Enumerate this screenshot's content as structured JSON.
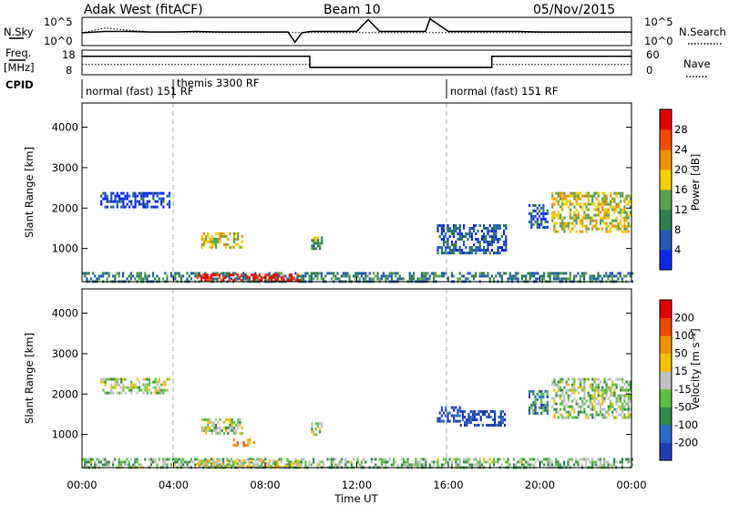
{
  "header": {
    "station": "Adak West (fitACF)",
    "beam": "Beam 10",
    "date": "05/Nov/2015"
  },
  "side_labels": {
    "nsky": "N.Sky",
    "nsearch": "N.Search",
    "freq_line1": "Freq.",
    "freq_line2": "[MHz]",
    "nave": "Nave",
    "cpid": "CPID"
  },
  "cpid_labels": [
    "normal (fast) 151 RF",
    "themis 3300 RF",
    "normal (fast) 151 RF"
  ],
  "chart_data": [
    {
      "type": "line",
      "name": "noise",
      "y_ticks_left": [
        "10^5",
        "10^0"
      ],
      "y_ticks_right": [
        "10^5",
        "10^0"
      ],
      "series": [
        {
          "name": "N.Sky",
          "style": "solid",
          "x": [
            0,
            1,
            2,
            3,
            4,
            5,
            6,
            7,
            8,
            9,
            9.3,
            9.6,
            10,
            11,
            12,
            12.5,
            13,
            14,
            15,
            15.2,
            16,
            17,
            18,
            19,
            20,
            21,
            22,
            23,
            24
          ],
          "y": [
            0.45,
            0.5,
            0.5,
            0.48,
            0.48,
            0.5,
            0.48,
            0.48,
            0.48,
            0.48,
            0.12,
            0.45,
            0.5,
            0.5,
            0.5,
            0.92,
            0.5,
            0.5,
            0.5,
            0.95,
            0.5,
            0.5,
            0.5,
            0.5,
            0.48,
            0.48,
            0.48,
            0.48,
            0.48
          ]
        },
        {
          "name": "N.Search",
          "style": "dotted",
          "x": [
            0,
            1,
            2,
            3,
            4,
            6,
            8,
            10,
            12,
            14,
            16,
            18,
            20,
            22,
            24
          ],
          "y": [
            0.45,
            0.62,
            0.55,
            0.48,
            0.48,
            0.46,
            0.46,
            0.46,
            0.46,
            0.46,
            0.46,
            0.46,
            0.46,
            0.46,
            0.46
          ]
        }
      ]
    },
    {
      "type": "line",
      "name": "frequency",
      "y_ticks_left": [
        "18",
        "8"
      ],
      "y_ticks_right": [
        "60",
        "0"
      ],
      "series": [
        {
          "name": "Freq.",
          "style": "solid",
          "x": [
            0,
            9.95,
            9.95,
            17.9,
            17.9,
            24
          ],
          "y": [
            0.75,
            0.75,
            0.3,
            0.3,
            0.75,
            0.75
          ]
        },
        {
          "name": "Nave",
          "style": "dotted",
          "x": [
            0,
            9.95,
            9.95,
            17.9,
            17.9,
            24
          ],
          "y": [
            0.42,
            0.42,
            0.28,
            0.28,
            0.42,
            0.42
          ]
        }
      ]
    },
    {
      "type": "heatmap",
      "name": "power",
      "xlabel": "",
      "ylabel": "Slant Range [km]",
      "ylim": [
        180,
        4600
      ],
      "xlim": [
        0,
        24
      ],
      "x_ticks": [],
      "y_ticks": [
        "1000",
        "2000",
        "3000",
        "4000"
      ],
      "colorbar_label": "Power [dB]",
      "colorbar_ticks": [
        "4",
        "8",
        "12",
        "16",
        "20",
        "24",
        "28"
      ],
      "colorbar_colors": [
        "#0a28e6",
        "#1f5ab4",
        "#2e7d4f",
        "#5aa050",
        "#f2d000",
        "#f29000",
        "#f24a00",
        "#e00000"
      ],
      "echo_regions": [
        {
          "t": [
            0.0,
            24.0
          ],
          "r": [
            200,
            420
          ],
          "level": 0.3
        },
        {
          "t": [
            5.0,
            9.5
          ],
          "r": [
            220,
            380
          ],
          "level": 0.95
        },
        {
          "t": [
            0.8,
            3.8
          ],
          "r": [
            2000,
            2400
          ],
          "level": 0.1
        },
        {
          "t": [
            5.2,
            7.0
          ],
          "r": [
            1000,
            1400
          ],
          "level": 0.55
        },
        {
          "t": [
            10.0,
            10.5
          ],
          "r": [
            1000,
            1300
          ],
          "level": 0.4
        },
        {
          "t": [
            15.5,
            18.5
          ],
          "r": [
            900,
            1600
          ],
          "level": 0.2
        },
        {
          "t": [
            19.5,
            20.3
          ],
          "r": [
            1500,
            2100
          ],
          "level": 0.15
        },
        {
          "t": [
            20.5,
            24.0
          ],
          "r": [
            1400,
            2400
          ],
          "level": 0.55
        }
      ]
    },
    {
      "type": "heatmap",
      "name": "velocity",
      "xlabel": "Time UT",
      "ylabel": "Slant Range [km]",
      "ylim": [
        180,
        4600
      ],
      "xlim": [
        0,
        24
      ],
      "x_ticks": [
        "00:00",
        "04:00",
        "08:00",
        "12:00",
        "16:00",
        "20:00",
        "00:00"
      ],
      "y_ticks": [
        "1000",
        "2000",
        "3000",
        "4000"
      ],
      "colorbar_label": "Velocity [m s⁻¹]",
      "colorbar_ticks": [
        "200",
        "100",
        "50",
        "15",
        "-15",
        "-50",
        "-100",
        "-200"
      ],
      "colorbar_colors": [
        "#1e3cb4",
        "#2a6cc8",
        "#2e8a4a",
        "#5cc040",
        "#c0c0c0",
        "#f2c000",
        "#f29000",
        "#f04a00",
        "#e00000"
      ],
      "echo_regions": [
        {
          "t": [
            0.0,
            24.0
          ],
          "r": [
            200,
            420
          ],
          "level": 0.4
        },
        {
          "t": [
            5.0,
            9.5
          ],
          "r": [
            220,
            380
          ],
          "level": 0.55
        },
        {
          "t": [
            0.8,
            3.8
          ],
          "r": [
            2000,
            2400
          ],
          "level": 0.45
        },
        {
          "t": [
            5.2,
            7.0
          ],
          "r": [
            1000,
            1400
          ],
          "level": 0.45
        },
        {
          "t": [
            6.5,
            7.5
          ],
          "r": [
            750,
            900
          ],
          "level": 0.7
        },
        {
          "t": [
            10.0,
            10.5
          ],
          "r": [
            1000,
            1300
          ],
          "level": 0.45
        },
        {
          "t": [
            15.5,
            16.5
          ],
          "r": [
            1300,
            1700
          ],
          "level": 0.05
        },
        {
          "t": [
            16.5,
            18.5
          ],
          "r": [
            1200,
            1600
          ],
          "level": 0.05
        },
        {
          "t": [
            19.5,
            20.3
          ],
          "r": [
            1500,
            2100
          ],
          "level": 0.25
        },
        {
          "t": [
            20.5,
            24.0
          ],
          "r": [
            1400,
            2400
          ],
          "level": 0.45
        }
      ]
    }
  ]
}
